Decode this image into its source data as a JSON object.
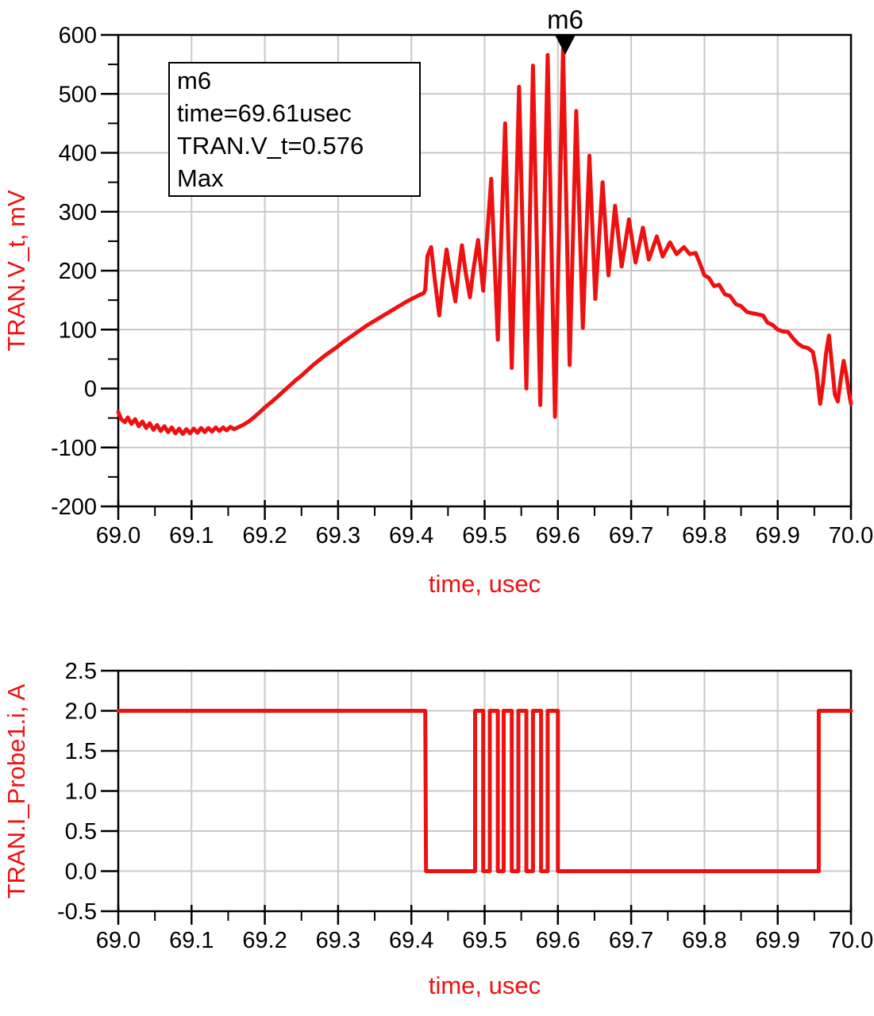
{
  "colors": {
    "series": "#ee1111",
    "axis_title": "#ee1111",
    "grid": "#c9c9c9",
    "axis": "#000000",
    "tick_text": "#000000",
    "marker_fill": "#000000",
    "background": "#ffffff"
  },
  "chart_data": [
    {
      "type": "line",
      "ylabel": "TRAN.V_t, mV",
      "xlabel": "time, usec",
      "xlim": [
        69.0,
        70.0
      ],
      "ylim": [
        -200,
        600
      ],
      "grid": true,
      "x_tick_values": [
        69.0,
        69.1,
        69.2,
        69.3,
        69.4,
        69.5,
        69.6,
        69.7,
        69.8,
        69.9,
        70.0
      ],
      "x_tick_labels": [
        "69.0",
        "69.1",
        "69.2",
        "69.3",
        "69.4",
        "69.5",
        "69.6",
        "69.7",
        "69.8",
        "69.9",
        "70.0"
      ],
      "y_tick_values": [
        600,
        500,
        400,
        300,
        200,
        100,
        0,
        -100,
        -200
      ],
      "y_tick_labels": [
        "600",
        "500",
        "400",
        "300",
        "200",
        "100",
        "0",
        "-100",
        "-200"
      ],
      "x_minor_step": 0.05,
      "y_minor_step": 50,
      "marker": {
        "name": "m6",
        "x": 69.61,
        "y": 576,
        "lines": [
          "m6",
          "time=69.61usec",
          "TRAN.V_t=0.576",
          "Max"
        ]
      },
      "series": [
        {
          "name": "TRAN.V_t",
          "unit": "mV",
          "color": "#ee1111",
          "points": [
            [
              69.0,
              -40
            ],
            [
              69.004,
              -52
            ],
            [
              69.009,
              -57
            ],
            [
              69.013,
              -49
            ],
            [
              69.018,
              -60
            ],
            [
              69.023,
              -52
            ],
            [
              69.028,
              -64
            ],
            [
              69.033,
              -56
            ],
            [
              69.038,
              -67
            ],
            [
              69.043,
              -59
            ],
            [
              69.048,
              -70
            ],
            [
              69.053,
              -62
            ],
            [
              69.058,
              -72
            ],
            [
              69.063,
              -64
            ],
            [
              69.068,
              -74
            ],
            [
              69.073,
              -66
            ],
            [
              69.078,
              -76
            ],
            [
              69.083,
              -68
            ],
            [
              69.088,
              -77
            ],
            [
              69.093,
              -69
            ],
            [
              69.098,
              -76
            ],
            [
              69.103,
              -68
            ],
            [
              69.108,
              -75
            ],
            [
              69.113,
              -67
            ],
            [
              69.118,
              -74
            ],
            [
              69.123,
              -67
            ],
            [
              69.128,
              -73
            ],
            [
              69.133,
              -66
            ],
            [
              69.138,
              -72
            ],
            [
              69.143,
              -66
            ],
            [
              69.148,
              -71
            ],
            [
              69.153,
              -65
            ],
            [
              69.158,
              -69
            ],
            [
              69.163,
              -66
            ],
            [
              69.17,
              -62
            ],
            [
              69.178,
              -56
            ],
            [
              69.186,
              -48
            ],
            [
              69.194,
              -39
            ],
            [
              69.202,
              -30
            ],
            [
              69.21,
              -22
            ],
            [
              69.218,
              -13
            ],
            [
              69.226,
              -4
            ],
            [
              69.234,
              5
            ],
            [
              69.242,
              14
            ],
            [
              69.25,
              22
            ],
            [
              69.258,
              31
            ],
            [
              69.266,
              40
            ],
            [
              69.274,
              48
            ],
            [
              69.282,
              56
            ],
            [
              69.29,
              63
            ],
            [
              69.298,
              70
            ],
            [
              69.306,
              78
            ],
            [
              69.314,
              85
            ],
            [
              69.322,
              92
            ],
            [
              69.33,
              99
            ],
            [
              69.338,
              106
            ],
            [
              69.346,
              112
            ],
            [
              69.354,
              118
            ],
            [
              69.362,
              124
            ],
            [
              69.37,
              130
            ],
            [
              69.378,
              136
            ],
            [
              69.386,
              142
            ],
            [
              69.394,
              148
            ],
            [
              69.402,
              153
            ],
            [
              69.41,
              158
            ],
            [
              69.417,
              162
            ],
            [
              69.419,
              168
            ],
            [
              69.422,
              225
            ],
            [
              69.427,
              240
            ],
            [
              69.432,
              185
            ],
            [
              69.438,
              124
            ],
            [
              69.443,
              185
            ],
            [
              69.448,
              236
            ],
            [
              69.454,
              190
            ],
            [
              69.46,
              148
            ],
            [
              69.464,
              195
            ],
            [
              69.469,
              243
            ],
            [
              69.474,
              198
            ],
            [
              69.48,
              155
            ],
            [
              69.485,
              205
            ],
            [
              69.491,
              252
            ],
            [
              69.498,
              166
            ],
            [
              69.509,
              356
            ],
            [
              69.518,
              83
            ],
            [
              69.528,
              450
            ],
            [
              69.537,
              35
            ],
            [
              69.547,
              512
            ],
            [
              69.557,
              0
            ],
            [
              69.566,
              548
            ],
            [
              69.576,
              -28
            ],
            [
              69.586,
              566
            ],
            [
              69.596,
              -48
            ],
            [
              69.607,
              576
            ],
            [
              69.616,
              40
            ],
            [
              69.625,
              471
            ],
            [
              69.634,
              103
            ],
            [
              69.643,
              395
            ],
            [
              69.651,
              152
            ],
            [
              69.661,
              350
            ],
            [
              69.669,
              192
            ],
            [
              69.678,
              310
            ],
            [
              69.687,
              207
            ],
            [
              69.697,
              287
            ],
            [
              69.706,
              214
            ],
            [
              69.716,
              273
            ],
            [
              69.724,
              219
            ],
            [
              69.735,
              258
            ],
            [
              69.743,
              224
            ],
            [
              69.753,
              248
            ],
            [
              69.762,
              228
            ],
            [
              69.772,
              240
            ],
            [
              69.78,
              228
            ],
            [
              69.788,
              230
            ],
            [
              69.793,
              215
            ],
            [
              69.8,
              192
            ],
            [
              69.806,
              188
            ],
            [
              69.813,
              174
            ],
            [
              69.82,
              176
            ],
            [
              69.828,
              160
            ],
            [
              69.835,
              157
            ],
            [
              69.843,
              143
            ],
            [
              69.85,
              140
            ],
            [
              69.858,
              130
            ],
            [
              69.865,
              128
            ],
            [
              69.872,
              126
            ],
            [
              69.88,
              124
            ],
            [
              69.886,
              112
            ],
            [
              69.893,
              108
            ],
            [
              69.9,
              100
            ],
            [
              69.907,
              97
            ],
            [
              69.914,
              96
            ],
            [
              69.921,
              85
            ],
            [
              69.928,
              76
            ],
            [
              69.934,
              71
            ],
            [
              69.941,
              69
            ],
            [
              69.948,
              62
            ],
            [
              69.953,
              30
            ],
            [
              69.958,
              -26
            ],
            [
              69.962,
              10
            ],
            [
              69.966,
              60
            ],
            [
              69.97,
              90
            ],
            [
              69.974,
              40
            ],
            [
              69.978,
              -10
            ],
            [
              69.982,
              -22
            ],
            [
              69.986,
              15
            ],
            [
              69.99,
              47
            ],
            [
              69.994,
              20
            ],
            [
              69.997,
              -5
            ],
            [
              70.0,
              -26
            ]
          ]
        }
      ]
    },
    {
      "type": "line",
      "ylabel": "TRAN.I_Probe1.i, A",
      "xlabel": "time, usec",
      "xlim": [
        69.0,
        70.0
      ],
      "ylim": [
        -0.5,
        2.5
      ],
      "grid": true,
      "x_tick_values": [
        69.0,
        69.1,
        69.2,
        69.3,
        69.4,
        69.5,
        69.6,
        69.7,
        69.8,
        69.9,
        70.0
      ],
      "x_tick_labels": [
        "69.0",
        "69.1",
        "69.2",
        "69.3",
        "69.4",
        "69.5",
        "69.6",
        "69.7",
        "69.8",
        "69.9",
        "70.0"
      ],
      "y_tick_values": [
        2.5,
        2.0,
        1.5,
        1.0,
        0.5,
        0.0,
        -0.5
      ],
      "y_tick_labels": [
        "2.5",
        "2.0",
        "1.5",
        "1.0",
        "0.5",
        "0.0",
        "-0.5"
      ],
      "x_minor_step": 0.05,
      "y_minor_step": null,
      "series": [
        {
          "name": "TRAN.I_Probe1.i",
          "unit": "A",
          "color": "#ee1111",
          "points": [
            [
              69.0,
              2
            ],
            [
              69.419,
              2
            ],
            [
              69.42,
              0
            ],
            [
              69.487,
              0
            ],
            [
              69.487,
              2
            ],
            [
              69.498,
              2
            ],
            [
              69.498,
              0
            ],
            [
              69.507,
              0
            ],
            [
              69.507,
              2
            ],
            [
              69.518,
              2
            ],
            [
              69.518,
              0
            ],
            [
              69.526,
              0
            ],
            [
              69.526,
              2
            ],
            [
              69.537,
              2
            ],
            [
              69.537,
              0
            ],
            [
              69.546,
              0
            ],
            [
              69.546,
              2
            ],
            [
              69.557,
              2
            ],
            [
              69.557,
              0
            ],
            [
              69.566,
              0
            ],
            [
              69.566,
              2
            ],
            [
              69.577,
              2
            ],
            [
              69.577,
              0
            ],
            [
              69.586,
              0
            ],
            [
              69.586,
              2
            ],
            [
              69.6,
              2
            ],
            [
              69.6,
              0
            ],
            [
              69.956,
              0
            ],
            [
              69.956,
              2
            ],
            [
              70.0,
              2
            ]
          ]
        }
      ]
    }
  ]
}
